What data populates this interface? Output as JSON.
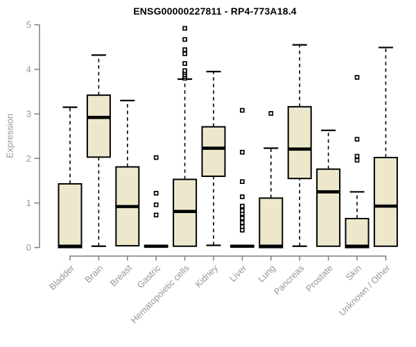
{
  "chart_data": {
    "type": "boxplot",
    "title": "ENSG00000227811 - RP4-773A18.4",
    "xlabel": "",
    "ylabel": "Expression",
    "ylim": [
      0,
      5
    ],
    "yticks": [
      0,
      1,
      2,
      3,
      4,
      5
    ],
    "grid": false,
    "legend": "none",
    "categories": [
      "Bladder",
      "Brain",
      "Breast",
      "Gastric",
      "Hematopoietic cells",
      "Kidney",
      "Liver",
      "Lung",
      "Pancreas",
      "Prostate",
      "Skin",
      "Unknown / Other"
    ],
    "series": [
      {
        "name": "Bladder",
        "whislo": 0,
        "q1": 0,
        "med": 0.03,
        "q3": 1.43,
        "whishi": 3.15,
        "outliers": []
      },
      {
        "name": "Brain",
        "whislo": 0.03,
        "q1": 2.03,
        "med": 2.92,
        "q3": 3.42,
        "whishi": 4.32,
        "outliers": []
      },
      {
        "name": "Breast",
        "whislo": 0.04,
        "q1": 0.04,
        "med": 0.92,
        "q3": 1.81,
        "whishi": 3.3,
        "outliers": []
      },
      {
        "name": "Gastric",
        "whislo": 0.02,
        "q1": 0.02,
        "med": 0.03,
        "q3": 0.04,
        "whishi": 0.04,
        "outliers": [
          0.73,
          0.96,
          1.22,
          2.02
        ]
      },
      {
        "name": "Hematopoietic cells",
        "whislo": 0.03,
        "q1": 0.03,
        "med": 0.81,
        "q3": 1.53,
        "whishi": 3.78,
        "outliers": [
          3.8,
          3.84,
          3.88,
          3.93,
          3.97,
          4.13,
          4.35,
          4.44,
          4.67,
          4.92
        ]
      },
      {
        "name": "Kidney",
        "whislo": 0.05,
        "q1": 1.6,
        "med": 2.23,
        "q3": 2.71,
        "whishi": 3.95,
        "outliers": []
      },
      {
        "name": "Liver",
        "whislo": 0.02,
        "q1": 0.02,
        "med": 0.03,
        "q3": 0.04,
        "whishi": 0.04,
        "outliers": [
          0.39,
          0.47,
          0.56,
          0.66,
          0.76,
          0.83,
          0.93,
          1.14,
          1.48,
          2.14,
          3.08
        ]
      },
      {
        "name": "Lung",
        "whislo": 0,
        "q1": 0,
        "med": 0.03,
        "q3": 1.11,
        "whishi": 2.23,
        "outliers": [
          3.01
        ]
      },
      {
        "name": "Pancreas",
        "whislo": 0.03,
        "q1": 1.55,
        "med": 2.21,
        "q3": 3.16,
        "whishi": 4.55,
        "outliers": []
      },
      {
        "name": "Prostate",
        "whislo": 0.03,
        "q1": 0.03,
        "med": 1.25,
        "q3": 1.76,
        "whishi": 2.63,
        "outliers": []
      },
      {
        "name": "Skin",
        "whislo": 0,
        "q1": 0,
        "med": 0.03,
        "q3": 0.65,
        "whishi": 1.25,
        "outliers": [
          1.96,
          2.05,
          2.43,
          3.82
        ]
      },
      {
        "name": "Unknown / Other",
        "whislo": 0.03,
        "q1": 0.03,
        "med": 0.93,
        "q3": 2.02,
        "whishi": 4.49,
        "outliers": []
      }
    ],
    "colors": {
      "box_fill": "#EDE8CC",
      "box_border": "#000000",
      "median": "#000000",
      "whisker": "#000000",
      "outlier_stroke": "#000000",
      "outlier_fill": "#ffffff",
      "axis_line": "#7f7f7f",
      "tick_label": "#969696",
      "title": "#000000"
    }
  }
}
